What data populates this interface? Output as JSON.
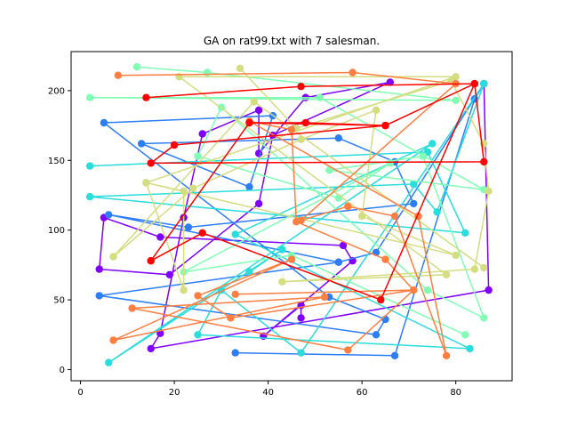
{
  "chart_data": {
    "type": "line",
    "title": "GA on rat99.txt with 7 salesman.",
    "xlabel": "",
    "ylabel": "",
    "xlim": [
      -2,
      92
    ],
    "ylim": [
      -8,
      228
    ],
    "x_ticks": [
      0,
      20,
      40,
      60,
      80
    ],
    "y_ticks": [
      0,
      50,
      100,
      150,
      200
    ],
    "grid": false,
    "series": [
      {
        "color": "#8000ff",
        "points": [
          [
            86,
            205
          ],
          [
            87,
            57
          ],
          [
            15,
            15
          ],
          [
            17,
            26
          ],
          [
            22,
            109
          ],
          [
            26,
            169
          ],
          [
            38,
            186
          ],
          [
            38,
            155
          ],
          [
            48,
            195
          ],
          [
            66,
            206
          ],
          [
            41,
            168
          ],
          [
            38,
            119
          ],
          [
            19,
            68
          ],
          [
            4,
            72
          ],
          [
            5,
            109
          ],
          [
            17,
            95
          ],
          [
            56,
            89
          ],
          [
            58,
            78
          ],
          [
            39,
            24
          ],
          [
            47,
            46
          ],
          [
            47,
            37
          ]
        ]
      },
      {
        "color": "#2c7ef7",
        "points": [
          [
            84,
            194
          ],
          [
            86,
            205
          ],
          [
            63,
            84
          ],
          [
            55,
            77
          ],
          [
            6,
            111
          ],
          [
            23,
            102
          ],
          [
            71,
            119
          ],
          [
            67,
            149
          ],
          [
            55,
            166
          ],
          [
            13,
            162
          ],
          [
            36,
            131
          ],
          [
            41,
            182
          ],
          [
            5,
            177
          ],
          [
            53,
            52
          ],
          [
            65,
            36
          ],
          [
            63,
            25
          ],
          [
            4,
            53
          ],
          [
            55,
            77
          ]
        ]
      },
      {
        "color": "#2c7ef7",
        "points": [
          [
            33,
            12
          ],
          [
            67,
            10
          ],
          [
            84,
            194
          ]
        ]
      },
      {
        "color": "#2adddd",
        "points": [
          [
            2,
            146
          ],
          [
            74,
            156
          ],
          [
            82,
            98
          ],
          [
            2,
            124
          ],
          [
            71,
            133
          ],
          [
            76,
            113
          ],
          [
            86,
            205
          ],
          [
            47,
            12
          ],
          [
            30,
            57
          ],
          [
            25,
            25
          ],
          [
            83,
            15
          ],
          [
            33,
            97
          ],
          [
            75,
            162
          ],
          [
            6,
            5
          ],
          [
            43,
            86
          ],
          [
            36,
            70
          ]
        ]
      },
      {
        "color": "#80ffb4",
        "points": [
          [
            12,
            217
          ],
          [
            27,
            213
          ],
          [
            80,
            193
          ],
          [
            2,
            195
          ],
          [
            51,
            195
          ],
          [
            86,
            129
          ],
          [
            53,
            143
          ],
          [
            73,
            153
          ],
          [
            86,
            37
          ],
          [
            74,
            57
          ],
          [
            30,
            188
          ],
          [
            25,
            153
          ],
          [
            55,
            123
          ],
          [
            66,
            148
          ],
          [
            22,
            70
          ],
          [
            45,
            82
          ],
          [
            82,
            25
          ]
        ]
      },
      {
        "color": "#d4dd80",
        "points": [
          [
            34,
            216
          ],
          [
            46,
            173
          ],
          [
            79,
            207
          ],
          [
            86,
            162
          ],
          [
            87,
            128
          ],
          [
            84,
            72
          ],
          [
            43,
            63
          ],
          [
            78,
            68
          ],
          [
            21,
            210
          ],
          [
            80,
            210
          ],
          [
            14,
            134
          ],
          [
            22,
            128
          ],
          [
            22,
            57
          ],
          [
            14,
            134
          ],
          [
            80,
            82
          ],
          [
            60,
            110
          ],
          [
            63,
            186
          ],
          [
            47,
            165
          ],
          [
            24,
            130
          ],
          [
            7,
            81
          ],
          [
            37,
            192
          ],
          [
            86,
            73
          ]
        ]
      },
      {
        "color": "#ff7e41",
        "points": [
          [
            8,
            211
          ],
          [
            58,
            213
          ],
          [
            80,
            205
          ],
          [
            47,
            107
          ],
          [
            57,
            117
          ],
          [
            67,
            110
          ],
          [
            78,
            10
          ],
          [
            72,
            110
          ],
          [
            36,
            178
          ],
          [
            45,
            172
          ],
          [
            46,
            106
          ],
          [
            65,
            79
          ],
          [
            71,
            57
          ],
          [
            32,
            37
          ],
          [
            25,
            53
          ],
          [
            45,
            79
          ],
          [
            7,
            21
          ],
          [
            52,
            52
          ],
          [
            11,
            44
          ],
          [
            57,
            14
          ],
          [
            71,
            57
          ],
          [
            33,
            54
          ]
        ]
      },
      {
        "color": "#ff0000",
        "points": [
          [
            14,
            195
          ],
          [
            47,
            203
          ],
          [
            84,
            205
          ],
          [
            65,
            175
          ],
          [
            36,
            177
          ],
          [
            15,
            78
          ],
          [
            36,
            177
          ],
          [
            48,
            177
          ],
          [
            65,
            175
          ],
          [
            20,
            161
          ],
          [
            15,
            148
          ],
          [
            86,
            149
          ],
          [
            84,
            205
          ],
          [
            64,
            50
          ],
          [
            26,
            98
          ],
          [
            15,
            78
          ]
        ]
      }
    ]
  }
}
